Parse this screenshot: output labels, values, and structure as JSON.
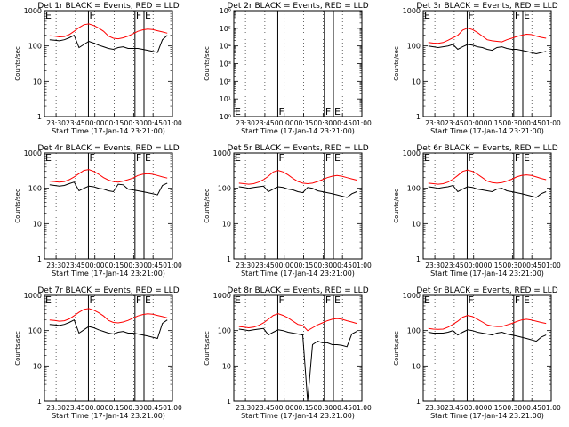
{
  "colors": {
    "events": "#000000",
    "lld": "#ff0000",
    "background": "#ffffff"
  },
  "chart_data": [
    {
      "type": "line",
      "title": "Det 1r BLACK = Events, RED = LLD",
      "ylabel": "Counts/sec",
      "xlabel": "Start Time (17-Jan-14 23:21:00)",
      "yscale": "log",
      "ylim": [
        1,
        1000
      ],
      "ytick_labels": [
        "1",
        "10",
        "100",
        "1000"
      ],
      "x_tick_labels": [
        "23:30",
        "23:45",
        "00:00",
        "00:15",
        "00:30",
        "00:45",
        "01:00"
      ],
      "flag_labels": [
        {
          "text": "E",
          "at": "23:21"
        },
        {
          "text": "F",
          "at": "23:55"
        },
        {
          "text": "F",
          "at": "00:31"
        },
        {
          "text": "E",
          "at": "00:38"
        }
      ],
      "series": [
        {
          "name": "Events",
          "color": "#000000",
          "values": [
            150,
            145,
            140,
            150,
            170,
            200,
            90,
            110,
            135,
            120,
            105,
            95,
            85,
            80,
            90,
            95,
            85,
            85,
            85,
            80,
            75,
            70,
            65,
            150,
            200
          ]
        },
        {
          "name": "LLD",
          "color": "#ff0000",
          "values": [
            195,
            190,
            180,
            185,
            210,
            260,
            330,
            400,
            420,
            380,
            320,
            260,
            190,
            165,
            160,
            170,
            190,
            220,
            260,
            285,
            300,
            290,
            270,
            250,
            230
          ]
        }
      ]
    },
    {
      "type": "line",
      "title": "Det 2r BLACK = Events, RED = LLD",
      "ylabel": "Counts/sec",
      "xlabel": "Start Time (17-Jan-14 23:21:00)",
      "yscale": "log",
      "ylim": [
        1,
        1000000
      ],
      "ytick_labels": [
        "10⁰",
        "10¹",
        "10²",
        "10³",
        "10⁴",
        "10⁵",
        "10⁶"
      ],
      "x_tick_labels": [
        "23:30",
        "23:45",
        "00:00",
        "00:15",
        "00:30",
        "00:45",
        "01:00"
      ],
      "flag_labels": [
        {
          "text": "E",
          "at": "23:21"
        },
        {
          "text": "F",
          "at": "23:55"
        },
        {
          "text": "F",
          "at": "00:31"
        },
        {
          "text": "E",
          "at": "00:38"
        }
      ],
      "series": []
    },
    {
      "type": "line",
      "title": "Det 3r BLACK = Events, RED = LLD",
      "ylabel": "Counts/sec",
      "xlabel": "Start Time (17-Jan-14 23:21:00)",
      "yscale": "log",
      "ylim": [
        1,
        1000
      ],
      "ytick_labels": [
        "1",
        "10",
        "100",
        "1000"
      ],
      "x_tick_labels": [
        "23:30",
        "23:45",
        "00:00",
        "00:15",
        "00:30",
        "00:45",
        "01:00"
      ],
      "flag_labels": [
        {
          "text": "E",
          "at": "23:21"
        },
        {
          "text": "F",
          "at": "23:55"
        },
        {
          "text": "F",
          "at": "00:31"
        },
        {
          "text": "E",
          "at": "00:38"
        }
      ],
      "series": [
        {
          "name": "Events",
          "color": "#000000",
          "values": [
            100,
            95,
            90,
            95,
            100,
            110,
            80,
            95,
            110,
            105,
            95,
            90,
            80,
            75,
            90,
            95,
            85,
            80,
            80,
            75,
            70,
            65,
            60,
            65,
            70
          ]
        },
        {
          "name": "LLD",
          "color": "#ff0000",
          "values": [
            125,
            120,
            118,
            125,
            145,
            170,
            200,
            280,
            320,
            290,
            240,
            190,
            150,
            140,
            135,
            130,
            150,
            165,
            185,
            200,
            215,
            210,
            190,
            175,
            165
          ]
        }
      ]
    },
    {
      "type": "line",
      "title": "Det 4r BLACK = Events, RED = LLD",
      "ylabel": "Counts/sec",
      "xlabel": "Start Time (17-Jan-14 23:21:00)",
      "yscale": "log",
      "ylim": [
        1,
        1000
      ],
      "ytick_labels": [
        "1",
        "10",
        "100",
        "1000"
      ],
      "x_tick_labels": [
        "23:30",
        "23:45",
        "00:00",
        "00:15",
        "00:30",
        "00:45",
        "01:00"
      ],
      "flag_labels": [
        {
          "text": "E",
          "at": "23:21"
        },
        {
          "text": "F",
          "at": "23:55"
        },
        {
          "text": "F",
          "at": "00:31"
        },
        {
          "text": "E",
          "at": "00:38"
        }
      ],
      "series": [
        {
          "name": "Events",
          "color": "#000000",
          "values": [
            125,
            120,
            115,
            120,
            135,
            150,
            85,
            100,
            115,
            110,
            100,
            95,
            85,
            80,
            130,
            125,
            95,
            90,
            85,
            80,
            75,
            70,
            65,
            120,
            140
          ]
        },
        {
          "name": "LLD",
          "color": "#ff0000",
          "values": [
            160,
            155,
            150,
            155,
            175,
            210,
            260,
            320,
            340,
            300,
            250,
            200,
            170,
            155,
            150,
            160,
            175,
            195,
            230,
            250,
            260,
            250,
            230,
            210,
            195
          ]
        }
      ]
    },
    {
      "type": "line",
      "title": "Det 5r BLACK = Events, RED = LLD",
      "ylabel": "Counts/sec",
      "xlabel": "Start Time (17-Jan-14 23:21:00)",
      "yscale": "log",
      "ylim": [
        1,
        1000
      ],
      "ytick_labels": [
        "1",
        "10",
        "100",
        "1000"
      ],
      "x_tick_labels": [
        "23:30",
        "23:45",
        "00:00",
        "00:15",
        "00:30",
        "00:45",
        "01:00"
      ],
      "flag_labels": [
        {
          "text": "E",
          "at": "23:21"
        },
        {
          "text": "F",
          "at": "23:55"
        },
        {
          "text": "F",
          "at": "00:31"
        },
        {
          "text": "E",
          "at": "00:38"
        }
      ],
      "series": [
        {
          "name": "Events",
          "color": "#000000",
          "values": [
            110,
            105,
            100,
            105,
            110,
            115,
            80,
            95,
            110,
            105,
            95,
            90,
            80,
            75,
            105,
            100,
            85,
            80,
            75,
            70,
            65,
            60,
            55,
            70,
            80
          ]
        },
        {
          "name": "LLD",
          "color": "#ff0000",
          "values": [
            140,
            135,
            130,
            135,
            150,
            175,
            220,
            290,
            320,
            290,
            240,
            190,
            155,
            140,
            135,
            140,
            155,
            175,
            200,
            220,
            230,
            220,
            200,
            185,
            170
          ]
        }
      ]
    },
    {
      "type": "line",
      "title": "Det 6r BLACK = Events, RED = LLD",
      "ylabel": "Counts/sec",
      "xlabel": "Start Time (17-Jan-14 23:21:00)",
      "yscale": "log",
      "ylim": [
        1,
        1000
      ],
      "ytick_labels": [
        "1",
        "10",
        "100",
        "1000"
      ],
      "x_tick_labels": [
        "23:30",
        "23:45",
        "00:00",
        "00:15",
        "00:30",
        "00:45",
        "01:00"
      ],
      "flag_labels": [
        {
          "text": "E",
          "at": "23:21"
        },
        {
          "text": "F",
          "at": "23:55"
        },
        {
          "text": "F",
          "at": "00:31"
        },
        {
          "text": "E",
          "at": "00:38"
        }
      ],
      "series": [
        {
          "name": "Events",
          "color": "#000000",
          "values": [
            110,
            105,
            100,
            105,
            110,
            120,
            80,
            95,
            110,
            105,
            95,
            90,
            85,
            80,
            95,
            100,
            85,
            80,
            75,
            70,
            65,
            60,
            55,
            70,
            80
          ]
        },
        {
          "name": "LLD",
          "color": "#ff0000",
          "values": [
            140,
            135,
            130,
            135,
            150,
            180,
            230,
            300,
            330,
            300,
            250,
            200,
            160,
            145,
            140,
            145,
            160,
            180,
            210,
            230,
            240,
            230,
            210,
            190,
            175
          ]
        }
      ]
    },
    {
      "type": "line",
      "title": "Det 7r BLACK = Events, RED = LLD",
      "ylabel": "Counts/sec",
      "xlabel": "Start Time (17-Jan-14 23:21:00)",
      "yscale": "log",
      "ylim": [
        1,
        1000
      ],
      "ytick_labels": [
        "1",
        "10",
        "100",
        "1000"
      ],
      "x_tick_labels": [
        "23:30",
        "23:45",
        "00:00",
        "00:15",
        "00:30",
        "00:45",
        "01:00"
      ],
      "flag_labels": [
        {
          "text": "E",
          "at": "23:21"
        },
        {
          "text": "F",
          "at": "23:55"
        },
        {
          "text": "F",
          "at": "00:31"
        },
        {
          "text": "E",
          "at": "00:38"
        }
      ],
      "series": [
        {
          "name": "Events",
          "color": "#000000",
          "values": [
            150,
            145,
            140,
            150,
            170,
            200,
            85,
            105,
            130,
            120,
            105,
            95,
            85,
            80,
            90,
            95,
            85,
            85,
            80,
            75,
            70,
            65,
            60,
            160,
            200
          ]
        },
        {
          "name": "LLD",
          "color": "#ff0000",
          "values": [
            200,
            195,
            185,
            190,
            215,
            265,
            330,
            400,
            420,
            380,
            320,
            260,
            195,
            170,
            165,
            175,
            195,
            225,
            260,
            285,
            300,
            290,
            270,
            250,
            230
          ]
        }
      ]
    },
    {
      "type": "line",
      "title": "Det 8r BLACK = Events, RED = LLD",
      "ylabel": "Counts/sec",
      "xlabel": "Start Time (17-Jan-14 23:21:00)",
      "yscale": "log",
      "ylim": [
        1,
        1000
      ],
      "ytick_labels": [
        "1",
        "10",
        "100",
        "1000"
      ],
      "x_tick_labels": [
        "23:30",
        "23:45",
        "00:00",
        "00:15",
        "00:30",
        "00:45",
        "01:00"
      ],
      "flag_labels": [
        {
          "text": "E",
          "at": "23:21"
        },
        {
          "text": "F",
          "at": "23:55"
        },
        {
          "text": "F",
          "at": "00:31"
        },
        {
          "text": "E",
          "at": "00:38"
        }
      ],
      "series": [
        {
          "name": "Events",
          "color": "#000000",
          "values": [
            110,
            105,
            100,
            105,
            110,
            115,
            75,
            90,
            105,
            100,
            90,
            85,
            80,
            75,
            1,
            40,
            50,
            45,
            45,
            40,
            40,
            38,
            35,
            80,
            95
          ]
        },
        {
          "name": "LLD",
          "color": "#ff0000",
          "values": [
            130,
            125,
            120,
            125,
            140,
            165,
            210,
            270,
            300,
            270,
            230,
            185,
            150,
            140,
            100,
            120,
            145,
            165,
            190,
            210,
            220,
            210,
            190,
            175,
            160
          ]
        }
      ]
    },
    {
      "type": "line",
      "title": "Det 9r BLACK = Events, RED = LLD",
      "ylabel": "Counts/sec",
      "xlabel": "Start Time (17-Jan-14 23:21:00)",
      "yscale": "log",
      "ylim": [
        1,
        1000
      ],
      "ytick_labels": [
        "1",
        "10",
        "100",
        "1000"
      ],
      "x_tick_labels": [
        "23:30",
        "23:45",
        "00:00",
        "00:15",
        "00:30",
        "00:45",
        "01:00"
      ],
      "flag_labels": [
        {
          "text": "E",
          "at": "23:21"
        },
        {
          "text": "F",
          "at": "23:55"
        },
        {
          "text": "F",
          "at": "00:31"
        },
        {
          "text": "E",
          "at": "00:38"
        }
      ],
      "series": [
        {
          "name": "Events",
          "color": "#000000",
          "values": [
            90,
            85,
            85,
            85,
            90,
            100,
            75,
            90,
            105,
            100,
            90,
            85,
            80,
            75,
            85,
            90,
            80,
            75,
            70,
            65,
            60,
            55,
            50,
            65,
            75
          ]
        },
        {
          "name": "LLD",
          "color": "#ff0000",
          "values": [
            115,
            110,
            108,
            110,
            125,
            150,
            185,
            240,
            270,
            250,
            210,
            175,
            145,
            135,
            130,
            130,
            145,
            160,
            180,
            200,
            210,
            200,
            185,
            170,
            160
          ]
        }
      ]
    }
  ]
}
